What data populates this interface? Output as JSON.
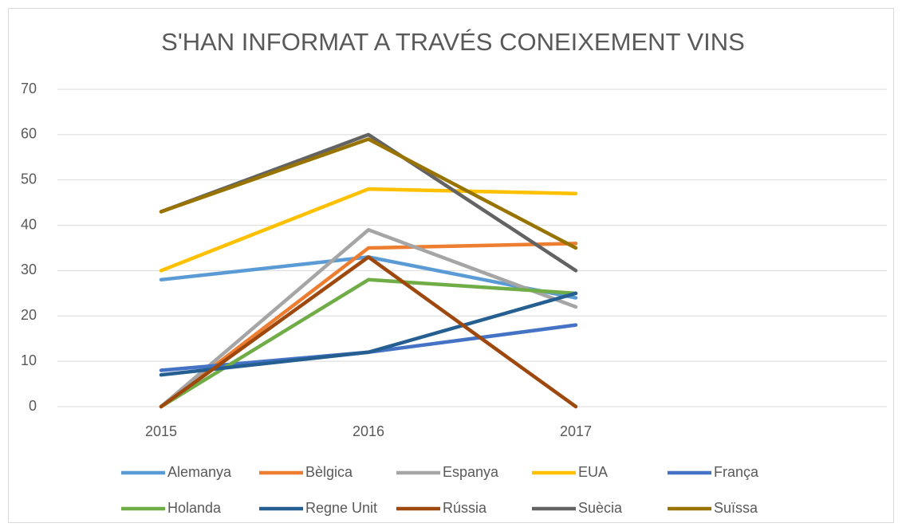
{
  "chart_data": {
    "type": "line",
    "title": "S'HAN INFORMAT A TRAVÉS CONEIXEMENT VINS",
    "categories": [
      "2015",
      "2016",
      "2017",
      null
    ],
    "series": [
      {
        "name": "Alemanya",
        "color": "#5b9bd5",
        "values": [
          28,
          33,
          24,
          null
        ]
      },
      {
        "name": "Bèlgica",
        "color": "#ed7d31",
        "values": [
          0,
          35,
          36,
          null
        ]
      },
      {
        "name": "Espanya",
        "color": "#a5a5a5",
        "values": [
          0,
          39,
          22,
          null
        ]
      },
      {
        "name": "EUA",
        "color": "#ffc000",
        "values": [
          30,
          48,
          47,
          null
        ]
      },
      {
        "name": "França",
        "color": "#4472c4",
        "values": [
          8,
          12,
          18,
          null
        ]
      },
      {
        "name": "Holanda",
        "color": "#70ad47",
        "values": [
          0,
          28,
          25,
          null
        ]
      },
      {
        "name": "Regne Unit",
        "color": "#255e91",
        "values": [
          7,
          12,
          25,
          null
        ]
      },
      {
        "name": "Rússia",
        "color": "#9e480e",
        "values": [
          0,
          33,
          0,
          null
        ]
      },
      {
        "name": "Suècia",
        "color": "#636363",
        "values": [
          43,
          60,
          30,
          null
        ]
      },
      {
        "name": "Suïssa",
        "color": "#997300",
        "values": [
          43,
          59,
          35,
          null
        ]
      }
    ],
    "ylim": [
      0,
      70
    ],
    "yticks": [
      0,
      10,
      20,
      30,
      40,
      50,
      60,
      70
    ],
    "grid": true,
    "legend": "bottom"
  }
}
